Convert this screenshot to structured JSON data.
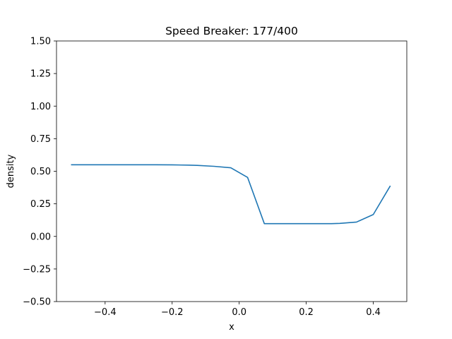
{
  "chart_data": {
    "type": "line",
    "title": "Speed Breaker: 177/400",
    "xlabel": "x",
    "ylabel": "density",
    "xlim": [
      -0.545,
      0.5
    ],
    "ylim": [
      -0.5,
      1.5
    ],
    "x_ticks": [
      -0.4,
      -0.2,
      0.0,
      0.2,
      0.4
    ],
    "x_tick_labels": [
      "−0.4",
      "−0.2",
      "0.0",
      "0.2",
      "0.4"
    ],
    "y_ticks": [
      -0.5,
      -0.25,
      0.0,
      0.25,
      0.5,
      0.75,
      1.0,
      1.25,
      1.5
    ],
    "y_tick_labels": [
      "−0.50",
      "−0.25",
      "0.00",
      "0.25",
      "0.50",
      "0.75",
      "1.00",
      "1.25",
      "1.50"
    ],
    "grid": false,
    "series": [
      {
        "color": "#1f77b4",
        "x": [
          -0.5,
          -0.45,
          -0.4,
          -0.35,
          -0.3,
          -0.25,
          -0.2,
          -0.15,
          -0.125,
          -0.075,
          -0.025,
          0.025,
          0.075,
          0.125,
          0.175,
          0.225,
          0.275,
          0.3,
          0.35,
          0.4,
          0.45
        ],
        "y": [
          0.55,
          0.55,
          0.55,
          0.55,
          0.55,
          0.55,
          0.549,
          0.547,
          0.545,
          0.538,
          0.527,
          0.453,
          0.098,
          0.098,
          0.098,
          0.098,
          0.098,
          0.1,
          0.11,
          0.168,
          0.385
        ]
      }
    ]
  }
}
